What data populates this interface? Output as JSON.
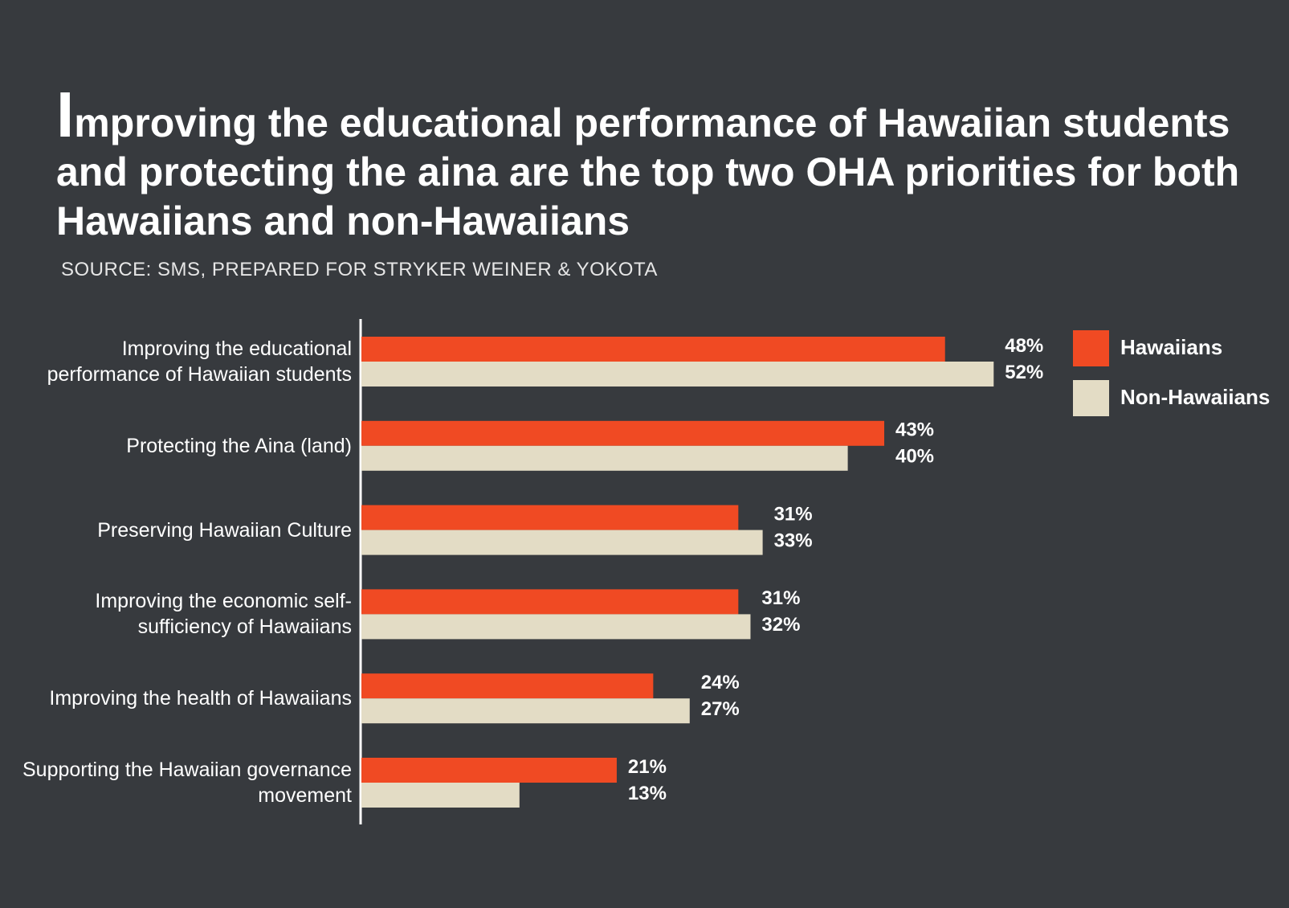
{
  "chart_data": {
    "type": "bar",
    "orientation": "horizontal",
    "title": "Improving the educational performance of Hawaiian students and protecting the aina are the top two OHA priorities for both Hawaiians and non-Hawaiians",
    "subtitle": "SOURCE: SMS, PREPARED FOR STRYKER WEINER & YOKOTA",
    "categories": [
      "Improving the educational performance of Hawaiian students",
      "Protecting the Aina (land)",
      "Preserving Hawaiian Culture",
      "Improving the economic self-sufficiency of Hawaiians",
      "Improving the health of Hawaiians",
      "Supporting the Hawaiian governance movement"
    ],
    "series": [
      {
        "name": "Hawaiians",
        "color": "#f04a23",
        "values": [
          48,
          43,
          31,
          31,
          24,
          21
        ],
        "value_labels": [
          "48%",
          "43%",
          "31%",
          "31%",
          "24%",
          "21%"
        ]
      },
      {
        "name": "Non-Hawaiians",
        "color": "#e3dcc5",
        "values": [
          52,
          40,
          33,
          32,
          27,
          13
        ],
        "value_labels": [
          "52%",
          "40%",
          "33%",
          "32%",
          "27%",
          "13%"
        ]
      }
    ],
    "legend": "top-right"
  }
}
